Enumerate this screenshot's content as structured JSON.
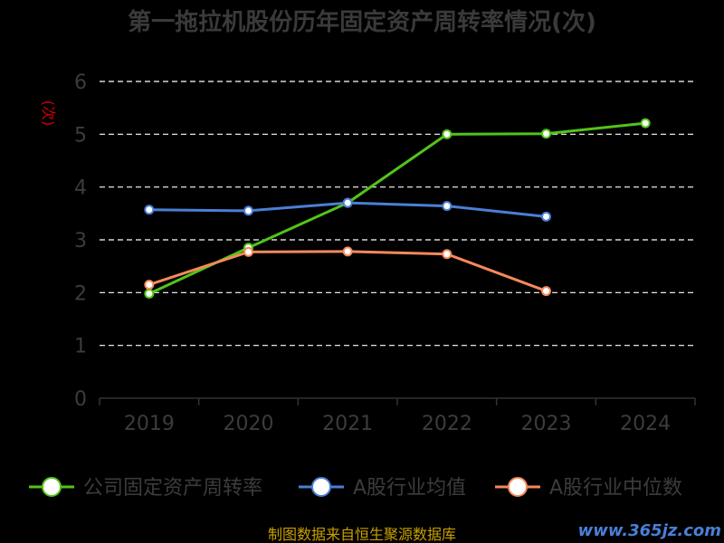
{
  "chart_data": {
    "type": "line",
    "title": "第一拖拉机股份历年固定资产周转率情况(次)",
    "ylabel": "(次)",
    "xlabel": "",
    "categories": [
      "2019",
      "2020",
      "2021",
      "2022",
      "2023",
      "2024"
    ],
    "ylim": [
      0,
      6
    ],
    "yticks": [
      0,
      1,
      2,
      3,
      4,
      5,
      6
    ],
    "grid": true,
    "legend_position": "bottom",
    "series": [
      {
        "name": "公司固定资产周转率",
        "color": "#52c41a",
        "values": [
          1.98,
          2.85,
          3.7,
          5.0,
          5.01,
          5.21
        ]
      },
      {
        "name": "A股行业均值",
        "color": "#4a7fd6",
        "values": [
          3.57,
          3.55,
          3.7,
          3.64,
          3.44,
          null
        ]
      },
      {
        "name": "A股行业中位数",
        "color": "#f5895a",
        "values": [
          2.15,
          2.77,
          2.78,
          2.73,
          2.03,
          null
        ]
      }
    ]
  },
  "footer": {
    "source": "制图数据来自恒生聚源数据库",
    "watermark": "www.365jz.com"
  }
}
